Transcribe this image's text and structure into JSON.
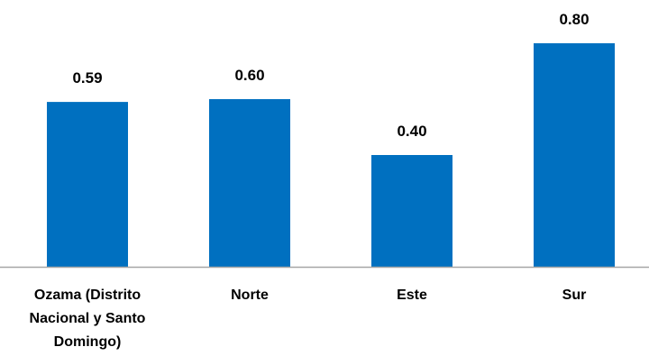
{
  "chart_data": {
    "type": "bar",
    "categories": [
      [
        "Ozama  (Distrito",
        "Nacional y Santo",
        "Domingo)"
      ],
      [
        "Norte"
      ],
      [
        "Este"
      ],
      [
        "Sur"
      ]
    ],
    "values": [
      0.59,
      0.6,
      0.4,
      0.8
    ],
    "data_labels": [
      "0.59",
      "0.60",
      "0.40",
      "0.80"
    ],
    "ylim": [
      0,
      0.85
    ],
    "grid": false,
    "legend": "none",
    "bar_color": "#0070C0",
    "axis_color": "#A6A6A6"
  }
}
